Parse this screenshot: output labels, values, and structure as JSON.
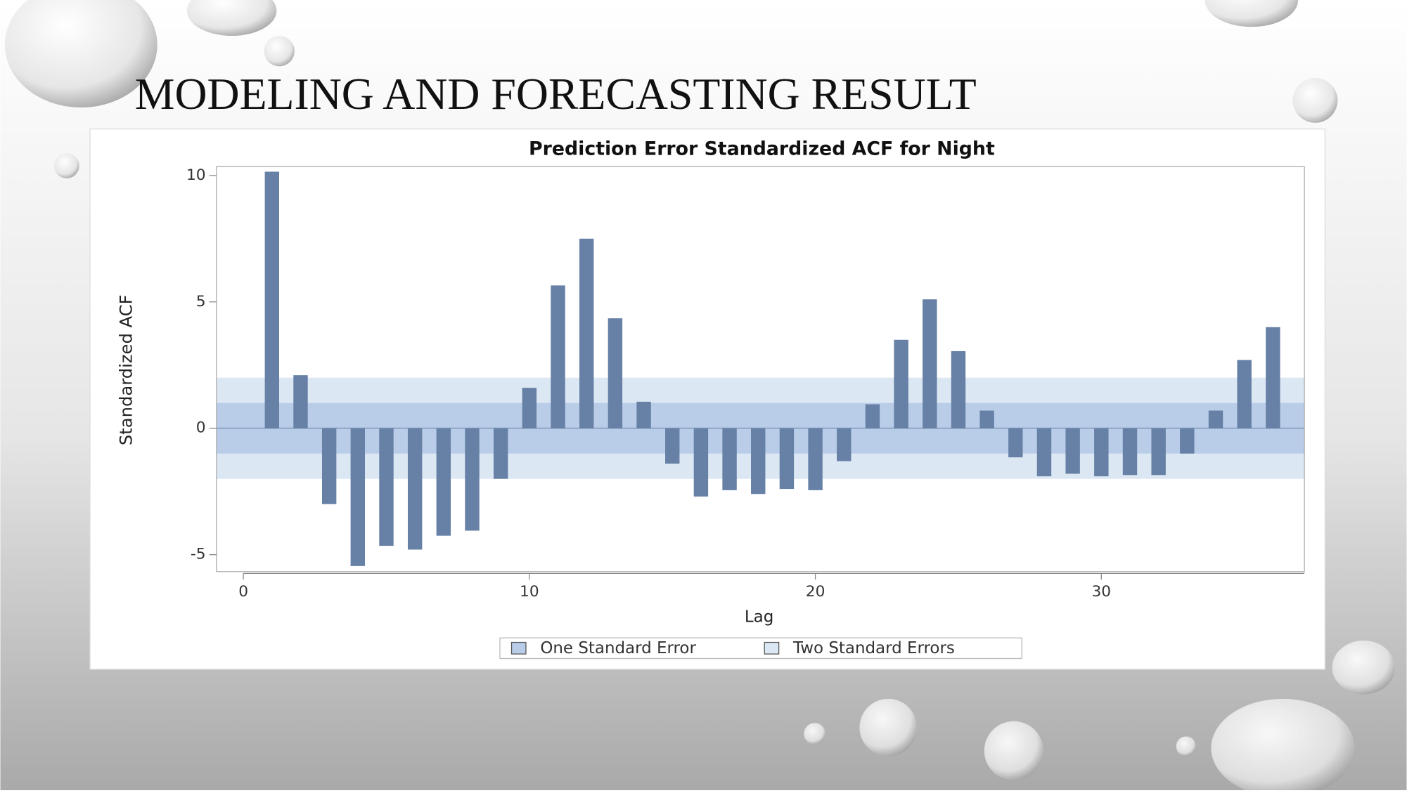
{
  "slide_title": "MODELING AND FORECASTING RESULT",
  "chart_data": {
    "type": "bar",
    "title": "Prediction Error Standardized ACF for Night",
    "x_label": "Lag",
    "y_label": "Standardized ACF",
    "x": [
      1,
      2,
      3,
      4,
      5,
      6,
      7,
      8,
      9,
      10,
      11,
      12,
      13,
      14,
      15,
      16,
      17,
      18,
      19,
      20,
      21,
      22,
      23,
      24,
      25,
      26,
      27,
      28,
      29,
      30,
      31,
      32,
      33,
      34,
      35,
      36
    ],
    "values": [
      10.15,
      2.1,
      -3.0,
      -5.45,
      -4.65,
      -4.8,
      -4.25,
      -4.05,
      -2.0,
      1.6,
      5.65,
      7.5,
      4.35,
      1.05,
      -1.4,
      -2.7,
      -2.45,
      -2.6,
      -2.4,
      -2.45,
      -1.3,
      0.95,
      3.5,
      5.1,
      3.05,
      0.7,
      -1.15,
      -1.9,
      -1.8,
      -1.9,
      -1.85,
      -1.85,
      -1.0,
      0.7,
      2.7,
      4.0
    ],
    "color": "#6680a6",
    "bands": [
      {
        "name": "Two Standard Errors",
        "value": 2,
        "color": "#dce7f4"
      },
      {
        "name": "One Standard Error",
        "value": 1,
        "color": "#b9cde8"
      }
    ],
    "xlim": [
      -0.94,
      37.1
    ],
    "xticks": [
      0,
      10,
      20,
      30
    ],
    "ylim": [
      -5.67,
      10.35
    ],
    "yticks": [
      -5,
      0,
      5,
      10
    ]
  }
}
